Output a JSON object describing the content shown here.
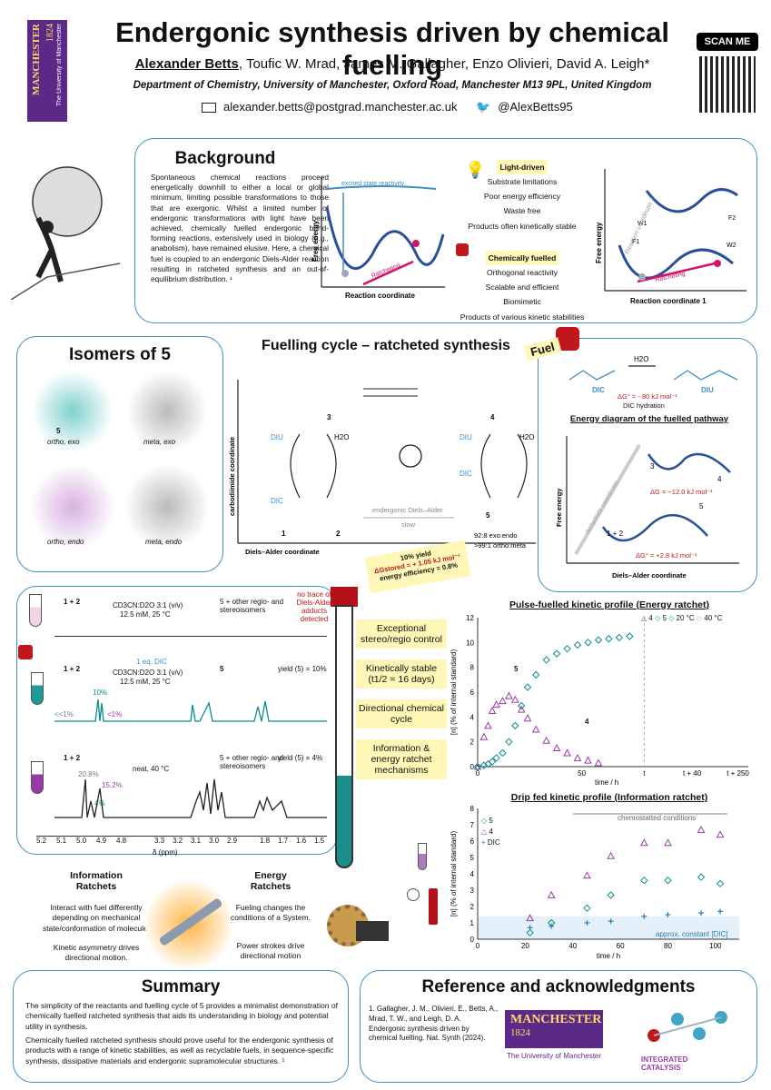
{
  "header": {
    "logo_name": "MANCHESTER",
    "logo_year": "1824",
    "logo_sub": "The University of Manchester",
    "title": "Endergonic synthesis driven by chemical fuelling",
    "presenter": "Alexander Betts",
    "coauthors": ", Toufic W. Mrad, James M. Gallagher, Enzo Olivieri, David A. Leigh*",
    "affiliation": "Department of Chemistry, University of Manchester, Oxford Road, Manchester M13 9PL, United Kingdom",
    "email": "alexander.betts@postgrad.manchester.ac.uk",
    "twitter": "@AlexBetts95",
    "scan": "SCAN ME"
  },
  "background": {
    "title": "Background",
    "text": "Spontaneous chemical reactions proceed energetically downhill to either a local or global minimum, limiting possible transformations to those that are exergonic. Whilst a limited number of endergonic transformations with light have been achieved, chemically fuelled endergonic bond-forming reactions, extensively used in biology (e.g., anabolism), have remained elusive. Here, a chemical fuel is coupled to an endergonic Diels-Alder reaction resulting in ratcheted synthesis and an out-of-equilibrium distribution. ¹",
    "light_title": "Light-driven",
    "light_items": [
      "Substrate limitations",
      "Poor energy efficiency",
      "Waste free",
      "Products often kinetically stable"
    ],
    "chem_title": "Chemically fuelled",
    "chem_items": [
      "Orthogonal reactivity",
      "Scalable and efficient",
      "Biomimetic",
      "Products of various kinetic stabilities"
    ],
    "d1_excited": "excited state reactivity",
    "d1_ylabel": "Free energy",
    "d1_xlabel": "Reaction coordinate",
    "d1_ratchet": "Ratcheting",
    "d2_ylabel": "Free energy",
    "d2_xlabel": "Reaction coordinate 1",
    "d2_ylabel2": "Reaction coordinate 2",
    "d2_labels": [
      "W1",
      "F1",
      "F2",
      "W2",
      "fast",
      "slow",
      "slow",
      "fast",
      "Ratcheting"
    ]
  },
  "isomers": {
    "title": "Isomers of 5",
    "items": [
      {
        "label": "ortho, exo",
        "num": "5"
      },
      {
        "label": "meta, exo",
        "num": ""
      },
      {
        "label": "ortho, endo",
        "num": ""
      },
      {
        "label": "meta, endo",
        "num": ""
      }
    ]
  },
  "cycle": {
    "title": "Fuelling cycle – ratcheted synthesis",
    "fuel": "Fuel",
    "n3": "3",
    "n4": "4",
    "n1": "1",
    "n2": "2",
    "n5": "5",
    "diu": "DIU",
    "dic": "DIC",
    "h2o": "H2O",
    "endergonic": "endergonic Diels–Alder",
    "slow": "slow",
    "ratio1": "92:8 exo:endo",
    "ratio2": ">99:1 ortho:meta",
    "yaxis": "carbodiimide coordinate",
    "xaxis": "Diels–Alder coordinate",
    "yield": "10% yield",
    "dg_stored": "ΔGstored = + 1.05 kJ mol⁻¹",
    "efficiency": "energy efficiency = 0.8%"
  },
  "fuelbox": {
    "dic": "DIC",
    "diu": "DIU",
    "h2o": "H2O",
    "dg": "ΔG° = - 80 kJ mol⁻¹",
    "hydration": "DIC hydration",
    "energy_title": "Energy diagram of the fuelled pathway",
    "ylabel": "Free energy",
    "xlabel": "Diels–Alder coordinate",
    "diag": "Anhydride coordinate",
    "g1": "ΔG = −12.0 kJ mol⁻¹",
    "g2": "ΔG° = +2.8 kJ mol⁻¹",
    "l3": "3",
    "l4": "4",
    "l12": "1 + 2",
    "l5": "5"
  },
  "nmr": {
    "r1_left": "1 + 2",
    "r1_cond1": "CD3CN:D2O 3:1 (v/v)",
    "r1_cond2": "12.5 mM, 25 °C",
    "r1_right": "5 + other regio- and stereoisomers",
    "r1_note": "no trace of Diels-Alder adducts detected",
    "r2_left": "1 + 2",
    "r2_dic": "1 eq. DIC",
    "r2_cond1": "CD3CN:D2O 3:1 (v/v)",
    "r2_cond2": "12.5 mM, 25 °C",
    "r2_right": "5",
    "r2_yield": "yield (5) = 10%",
    "r2_p1": "10%",
    "r2_p2": "<<1%",
    "r2_p3": "<1%",
    "r3_left": "1 + 2",
    "r3_cond": "neat, 40 °C",
    "r3_right": "5 + other regio- and stereoisomers",
    "r3_yield": "yield (5) = 4%",
    "r3_p1": "20.8%",
    "r3_p2": "15.2%",
    "r3_p3": "4%",
    "axis_ticks": [
      "5.2",
      "5.1",
      "5.0",
      "4.9",
      "4.8",
      "3.3",
      "3.2",
      "3.1",
      "3.0",
      "2.9",
      "1.8",
      "1.7",
      "1.6",
      "1.5"
    ],
    "axis_label": "δ (ppm)"
  },
  "features": [
    "Exceptional stereo/regio control",
    "Kinetically stable (t1/2 = 16 days)",
    "Directional chemical cycle",
    "Information & energy ratchet mechanisms"
  ],
  "ratchets": {
    "info_title": "Information Ratchets",
    "info_text1": "Interact with fuel differently depending on mechanical state/conformation of molecule.",
    "info_text2": "Kinetic asymmetry drives directional motion.",
    "energy_title": "Energy Ratchets",
    "energy_text1": "Fueling changes the conditions of a System.",
    "energy_text2": "Power strokes drive directional motion"
  },
  "pulse_chart": {
    "title": "Pulse-fuelled kinetic profile (Energy ratchet)",
    "legend": [
      "4",
      "5",
      "20 °C",
      "40 °C"
    ],
    "ylabel": "[n] (% of internal standard)",
    "xlabel": "time / h",
    "xticks": [
      "0",
      "50",
      "t",
      "t + 40",
      "t + 250"
    ],
    "yticks": [
      "0",
      "2",
      "4",
      "6",
      "8",
      "10",
      "12"
    ],
    "label5": "5",
    "label4": "4"
  },
  "chart_data": [
    {
      "type": "scatter",
      "title": "Pulse-fuelled kinetic profile (Energy ratchet)",
      "xlabel": "time / h",
      "ylabel": "[n] (% of internal standard)",
      "ylim": [
        0,
        12
      ],
      "series": [
        {
          "name": "4",
          "x": [
            0,
            3,
            5,
            7,
            9,
            12,
            15,
            18,
            21,
            24,
            28,
            33,
            38,
            43,
            48,
            53,
            58
          ],
          "values": [
            0,
            2.4,
            3.3,
            4.5,
            5.0,
            5.3,
            5.7,
            5.4,
            4.6,
            3.9,
            3.0,
            2.1,
            1.5,
            1.1,
            0.7,
            0.5,
            0.3
          ]
        },
        {
          "name": "5",
          "x": [
            0,
            3,
            5,
            7,
            9,
            12,
            15,
            18,
            21,
            24,
            28,
            33,
            38,
            43,
            48,
            53,
            58,
            63,
            68,
            73
          ],
          "values": [
            0,
            0.1,
            0.2,
            0.4,
            0.7,
            1.1,
            2.0,
            3.3,
            4.9,
            6.4,
            7.4,
            8.6,
            9.1,
            9.5,
            9.8,
            10.0,
            10.2,
            10.3,
            10.4,
            10.5
          ]
        }
      ]
    },
    {
      "type": "scatter",
      "title": "Drip fed kinetic profile (Information ratchet)",
      "xlabel": "time / h",
      "ylabel": "[n] (% of internal standard)",
      "ylim": [
        0,
        8
      ],
      "series": [
        {
          "name": "5",
          "x": [
            22,
            31,
            46,
            56,
            70,
            80,
            94,
            102
          ],
          "values": [
            0.4,
            1.0,
            1.9,
            2.7,
            3.6,
            3.6,
            3.8,
            3.4
          ]
        },
        {
          "name": "4",
          "x": [
            22,
            31,
            46,
            56,
            70,
            80,
            94,
            102
          ],
          "values": [
            1.3,
            2.7,
            3.9,
            5.1,
            5.9,
            5.9,
            6.7,
            6.4
          ]
        },
        {
          "name": "DIC",
          "x": [
            22,
            31,
            46,
            56,
            70,
            80,
            94,
            102
          ],
          "values": [
            0.7,
            0.8,
            1.0,
            1.1,
            1.4,
            1.5,
            1.6,
            1.7
          ]
        }
      ]
    }
  ],
  "drip_chart": {
    "title": "Drip fed kinetic profile (Information ratchet)",
    "legend": [
      "5",
      "4",
      "DIC"
    ],
    "ylabel": "[n] (% of internal standard)",
    "xlabel": "time / h",
    "xticks": [
      "0",
      "20",
      "40",
      "60",
      "80",
      "100"
    ],
    "yticks": [
      "0",
      "1",
      "2",
      "3",
      "4",
      "5",
      "6",
      "7",
      "8"
    ],
    "chemostat": "chemostatted conditions",
    "approx": "approx. constant [DIC]"
  },
  "summary": {
    "title": "Summary",
    "p1": "The simplicity of the reactants and fuelling cycle of 5 provides a minimalist demonstration of chemically fuelled ratcheted synthesis that aids its understanding in biology and potential utility in synthesis.",
    "p2": "Chemically fuelled ratcheted synthesis should prove useful for the endergonic synthesis of products with a range of kinetic stabilities, as well as recyclable fuels, in sequence-specific synthesis, dissipative materials and endergonic supramolecular structures. ¹"
  },
  "reference": {
    "title": "Reference and acknowledgments",
    "text": "1. Gallagher, J. M., Olivieri, E., Betts, A., Mrad, T. W., and Leigh, D. A. Endergonic synthesis driven by chemical fuelling. Nat. Synth (2024).",
    "logo_name": "MANCHESTER",
    "logo_year": "1824",
    "logo_sub": "The University of Manchester",
    "ic_logo": "INTEGRATED CATALYSIS"
  },
  "colors": {
    "accent": "#3f8fc0",
    "purple": "#5b2a87",
    "teal": "#0e8c8c",
    "violet": "#9a3aa8",
    "red": "#c0161e"
  }
}
